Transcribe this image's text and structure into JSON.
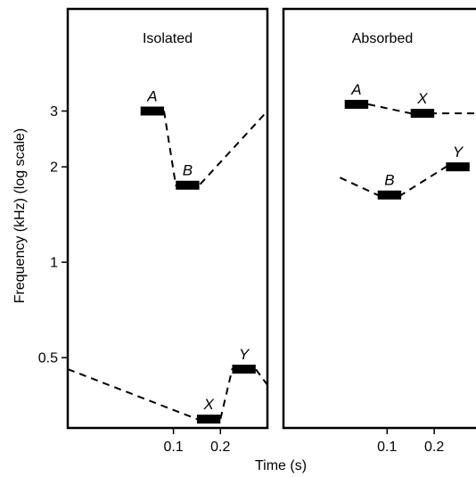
{
  "chart_data": {
    "type": "line",
    "y_label": "Frequency (kHz) (log scale)",
    "x_label": "Time (s)",
    "y_scale": "log",
    "y_ticks": [
      {
        "value": 0.5,
        "label": "0.5"
      },
      {
        "value": 1,
        "label": "1"
      },
      {
        "value": 2,
        "label": "2"
      },
      {
        "value": 3,
        "label": "3"
      }
    ],
    "x_ticks": [
      {
        "value": 0.1,
        "label": "0.1"
      },
      {
        "value": 0.2,
        "label": "0.2"
      }
    ],
    "panels": [
      {
        "title": "Isolated",
        "xlim": [
          -0.125,
          0.3
        ],
        "ylim": [
          0.3,
          6.3
        ],
        "tones": [
          {
            "label": "A",
            "t_start": 0.03,
            "t_end": 0.08,
            "freq": 3.0
          },
          {
            "label": "B",
            "t_start": 0.105,
            "t_end": 0.155,
            "freq": 1.75
          },
          {
            "label": "X",
            "t_start": 0.15,
            "t_end": 0.2,
            "freq": 0.32
          },
          {
            "label": "Y",
            "t_start": 0.225,
            "t_end": 0.275,
            "freq": 0.46
          }
        ],
        "glides": [
          [
            [
              0.08,
              3.0
            ],
            [
              0.105,
              1.75
            ],
            [
              0.155,
              1.75
            ],
            [
              0.3,
              3.0
            ]
          ],
          [
            [
              -0.125,
              0.46
            ],
            [
              0.15,
              0.32
            ],
            [
              0.2,
              0.32
            ],
            [
              0.225,
              0.46
            ],
            [
              0.275,
              0.46
            ],
            [
              0.3,
              0.41
            ]
          ]
        ]
      },
      {
        "title": "Absorbed",
        "xlim": [
          -0.12,
          0.3
        ],
        "ylim": [
          0.3,
          6.3
        ],
        "tones": [
          {
            "label": "A",
            "t_start": 0.01,
            "t_end": 0.06,
            "freq": 3.15
          },
          {
            "label": "X",
            "t_start": 0.15,
            "t_end": 0.2,
            "freq": 2.95
          },
          {
            "label": "B",
            "t_start": 0.08,
            "t_end": 0.13,
            "freq": 1.63
          },
          {
            "label": "Y",
            "t_start": 0.225,
            "t_end": 0.275,
            "freq": 2.0
          }
        ],
        "glides": [
          [
            [
              0.06,
              3.15
            ],
            [
              0.15,
              2.95
            ],
            [
              0.2,
              2.95
            ],
            [
              0.3,
              2.95
            ]
          ],
          [
            [
              0.0,
              1.85
            ],
            [
              0.08,
              1.63
            ],
            [
              0.13,
              1.63
            ],
            [
              0.225,
              2.0
            ],
            [
              0.275,
              2.0
            ]
          ]
        ]
      }
    ]
  }
}
